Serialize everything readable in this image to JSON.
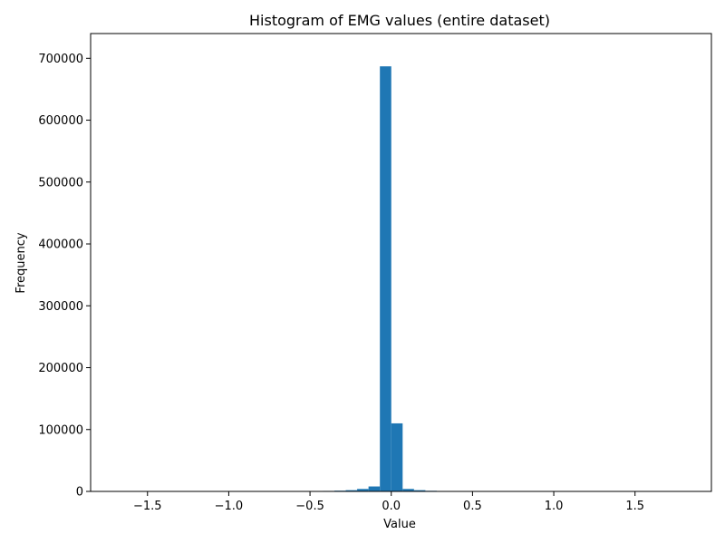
{
  "chart_data": {
    "type": "bar",
    "title": "Histogram of EMG values (entire dataset)",
    "xlabel": "Value",
    "ylabel": "Frequency",
    "xlim": [
      -1.85,
      1.97
    ],
    "ylim": [
      0,
      740000
    ],
    "xticks": [
      {
        "value": -1.5,
        "label": "−1.5"
      },
      {
        "value": -1.0,
        "label": "−1.0"
      },
      {
        "value": -0.5,
        "label": "−0.5"
      },
      {
        "value": 0.0,
        "label": "0.0"
      },
      {
        "value": 0.5,
        "label": "0.5"
      },
      {
        "value": 1.0,
        "label": "1.0"
      },
      {
        "value": 1.5,
        "label": "1.5"
      }
    ],
    "yticks": [
      {
        "value": 0,
        "label": "0"
      },
      {
        "value": 100000,
        "label": "100000"
      },
      {
        "value": 200000,
        "label": "200000"
      },
      {
        "value": 300000,
        "label": "300000"
      },
      {
        "value": 400000,
        "label": "400000"
      },
      {
        "value": 500000,
        "label": "500000"
      },
      {
        "value": 600000,
        "label": "600000"
      },
      {
        "value": 700000,
        "label": "700000"
      }
    ],
    "bin_edges": [
      -0.49,
      -0.42,
      -0.35,
      -0.28,
      -0.21,
      -0.14,
      -0.07,
      0.0,
      0.07,
      0.14,
      0.21,
      0.28,
      0.35,
      0.42,
      0.49
    ],
    "values": [
      500,
      800,
      1200,
      2000,
      4000,
      8000,
      687000,
      110000,
      4000,
      2000,
      1000,
      600,
      400,
      300
    ],
    "bar_color": "#1f77b4",
    "grid": false
  }
}
